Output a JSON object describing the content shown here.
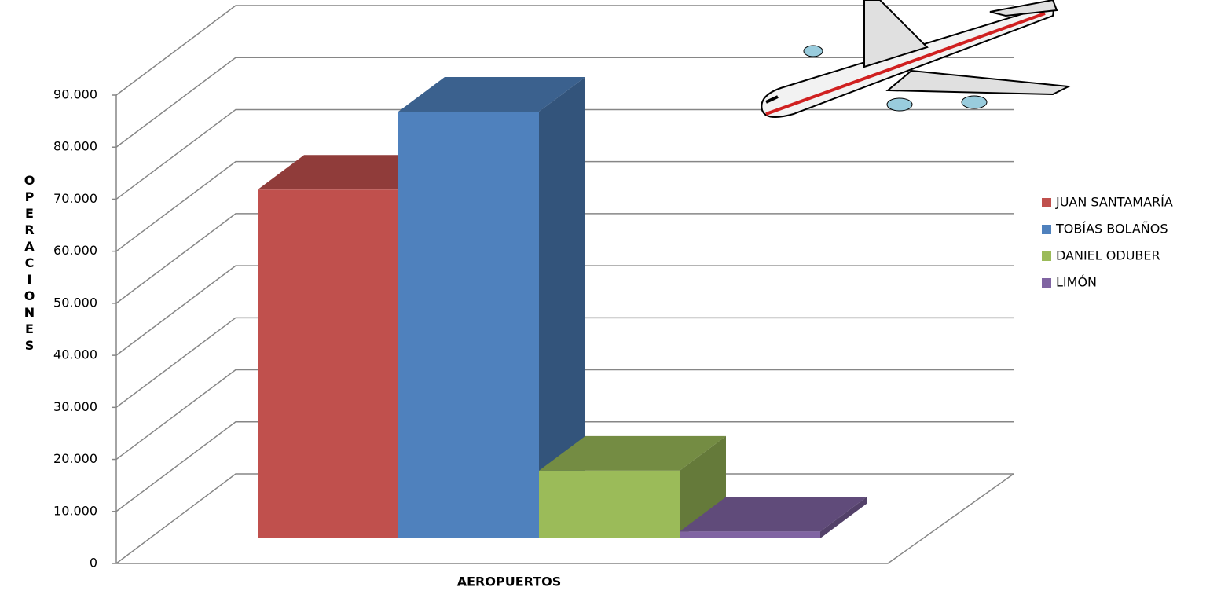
{
  "chart_data": {
    "type": "bar3d",
    "x_label": "AEROPUERTOS",
    "y_label": "OPERACIONES",
    "series": [
      {
        "name": "JUAN SANTAMARÍA",
        "color": "#c0504d",
        "values": [
          67000
        ]
      },
      {
        "name": "TOBÍAS BOLAÑOS",
        "color": "#4f81bd",
        "values": [
          82000
        ]
      },
      {
        "name": "DANIEL ODUBER",
        "color": "#9bbb59",
        "values": [
          13000
        ]
      },
      {
        "name": "LIMÓN",
        "color": "#8064a2",
        "values": [
          1300
        ]
      }
    ],
    "ylim": [
      0,
      90000
    ],
    "yticks": [
      0,
      {
        "value": 10000,
        "label": "10.000"
      },
      {
        "value": 20000,
        "label": "20.000"
      },
      {
        "value": 30000,
        "label": "30.000"
      },
      {
        "value": 40000,
        "label": "40.000"
      },
      {
        "value": 50000,
        "label": "50.000"
      },
      {
        "value": 60000,
        "label": "60.000"
      },
      {
        "value": 70000,
        "label": "70.000"
      },
      {
        "value": 80000,
        "label": "80.000"
      },
      {
        "value": 90000,
        "label": "90.000"
      }
    ],
    "grid": true,
    "legend": "right"
  }
}
